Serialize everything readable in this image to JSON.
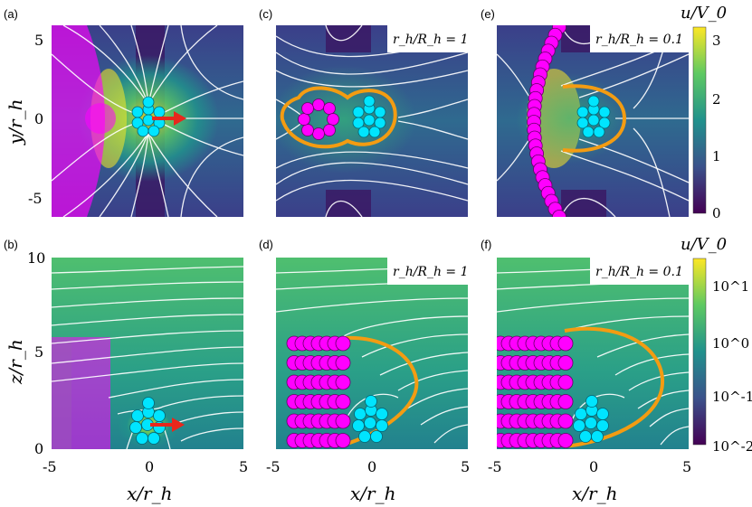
{
  "panels": {
    "a": {
      "label": "(a)"
    },
    "b": {
      "label": "(b)"
    },
    "c": {
      "label": "(c)",
      "ratio": "r_h/R_h = 1"
    },
    "d": {
      "label": "(d)",
      "ratio": "r_h/R_h = 1"
    },
    "e": {
      "label": "(e)",
      "ratio": "r_h/R_h = 0.1"
    },
    "f": {
      "label": "(f)",
      "ratio": "r_h/R_h = 0.1"
    }
  },
  "axes": {
    "top_y_ticks": [
      "5",
      "0",
      "-5"
    ],
    "bottom_y_ticks": [
      "10",
      "5",
      "0"
    ],
    "x_ticks": [
      "-5",
      "0",
      "5"
    ],
    "ylabel_top": "y/r_h",
    "ylabel_bottom": "z/r_h",
    "xlabel": "x/r_h"
  },
  "colorbars": {
    "linear": {
      "title": "u/V_0",
      "ticks": [
        "3",
        "2",
        "1",
        "0"
      ]
    },
    "log": {
      "title": "u/V_0",
      "ticks": [
        "10^1",
        "10^0",
        "10^-1",
        "10^-2"
      ]
    }
  },
  "colors": {
    "colormap": [
      "#440154",
      "#3b528b",
      "#21918c",
      "#5ec962",
      "#fde725"
    ],
    "wall": "#ff00ff",
    "swimmer": "#00e5ff",
    "ring": "#f39c12",
    "arrow": "#e8271c"
  }
}
